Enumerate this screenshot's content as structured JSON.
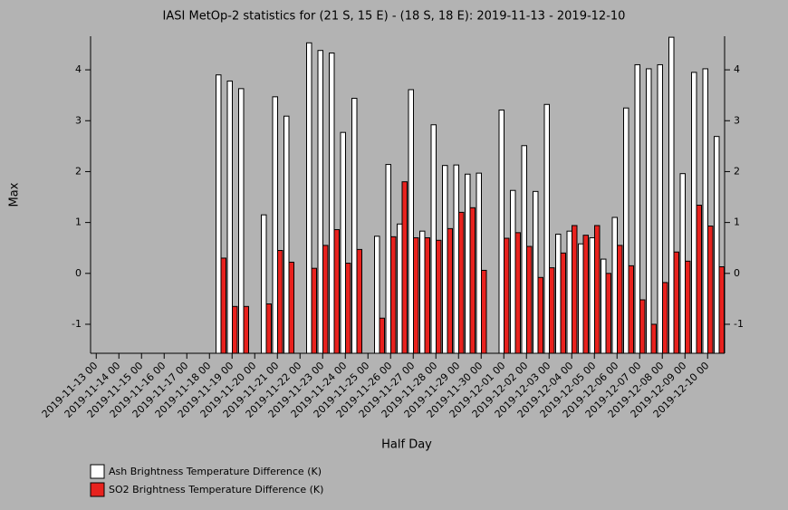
{
  "chart_data": {
    "type": "bar",
    "title": "IASI MetOp-2 statistics for (21 S, 15 E) - (18 S, 18 E): 2019-11-13 - 2019-12-10",
    "x_label": "Half Day",
    "y_label": "Max",
    "categories": [
      "2019-11-13 00",
      null,
      "2019-11-14 00",
      null,
      "2019-11-15 00",
      null,
      "2019-11-16 00",
      null,
      "2019-11-17 00",
      null,
      "2019-11-18 00",
      null,
      "2019-11-19 00",
      null,
      "2019-11-20 00",
      null,
      "2019-11-21 00",
      null,
      "2019-11-22 00",
      null,
      "2019-11-23 00",
      null,
      "2019-11-24 00",
      null,
      "2019-11-25 00",
      null,
      "2019-11-26 00",
      null,
      "2019-11-27 00",
      null,
      "2019-11-28 00",
      null,
      "2019-11-29 00",
      null,
      "2019-11-30 00",
      null,
      "2019-12-01 00",
      null,
      "2019-12-02 00",
      null,
      "2019-12-03 00",
      null,
      "2019-12-04 00",
      null,
      "2019-12-05 00",
      null,
      "2019-12-06 00",
      null,
      "2019-12-07 00",
      null,
      "2019-12-08 00",
      null,
      "2019-12-09 00",
      null,
      "2019-12-10 00",
      null
    ],
    "series": [
      {
        "name": "Ash Brightness Temperature Difference (K)",
        "color": "#ffffff",
        "values": [
          null,
          null,
          null,
          null,
          null,
          null,
          null,
          null,
          null,
          null,
          null,
          3.9,
          3.78,
          3.63,
          null,
          1.15,
          3.47,
          3.09,
          null,
          4.53,
          4.38,
          4.33,
          2.77,
          3.44,
          null,
          0.73,
          2.14,
          0.97,
          3.61,
          0.83,
          2.92,
          2.12,
          2.13,
          1.95,
          1.97,
          null,
          3.21,
          1.63,
          2.51,
          1.61,
          3.32,
          0.77,
          0.83,
          0.58,
          0.7,
          0.28,
          1.1,
          3.25,
          4.1,
          4.02,
          4.1,
          4.64,
          1.96,
          3.95,
          4.02,
          2.69
        ]
      },
      {
        "name": "SO2 Brightness Temperature Difference (K)",
        "color": "#e8221e",
        "values": [
          null,
          null,
          null,
          null,
          null,
          null,
          null,
          null,
          null,
          null,
          null,
          0.3,
          -0.65,
          -0.65,
          null,
          -0.6,
          0.45,
          0.22,
          null,
          0.1,
          0.55,
          0.86,
          0.2,
          0.47,
          null,
          -0.88,
          0.72,
          1.8,
          0.7,
          0.7,
          0.65,
          0.88,
          1.2,
          1.29,
          0.06,
          null,
          0.69,
          0.8,
          0.53,
          -0.08,
          0.11,
          0.4,
          0.94,
          0.75,
          0.94,
          0.0,
          0.55,
          0.15,
          -0.52,
          -1.0,
          -0.18,
          0.42,
          0.24,
          1.34,
          0.93,
          0.13
        ]
      }
    ],
    "ylim": [
      -1.57,
      4.66
    ],
    "yticks": [
      -1,
      0,
      1,
      2,
      3,
      4
    ]
  }
}
